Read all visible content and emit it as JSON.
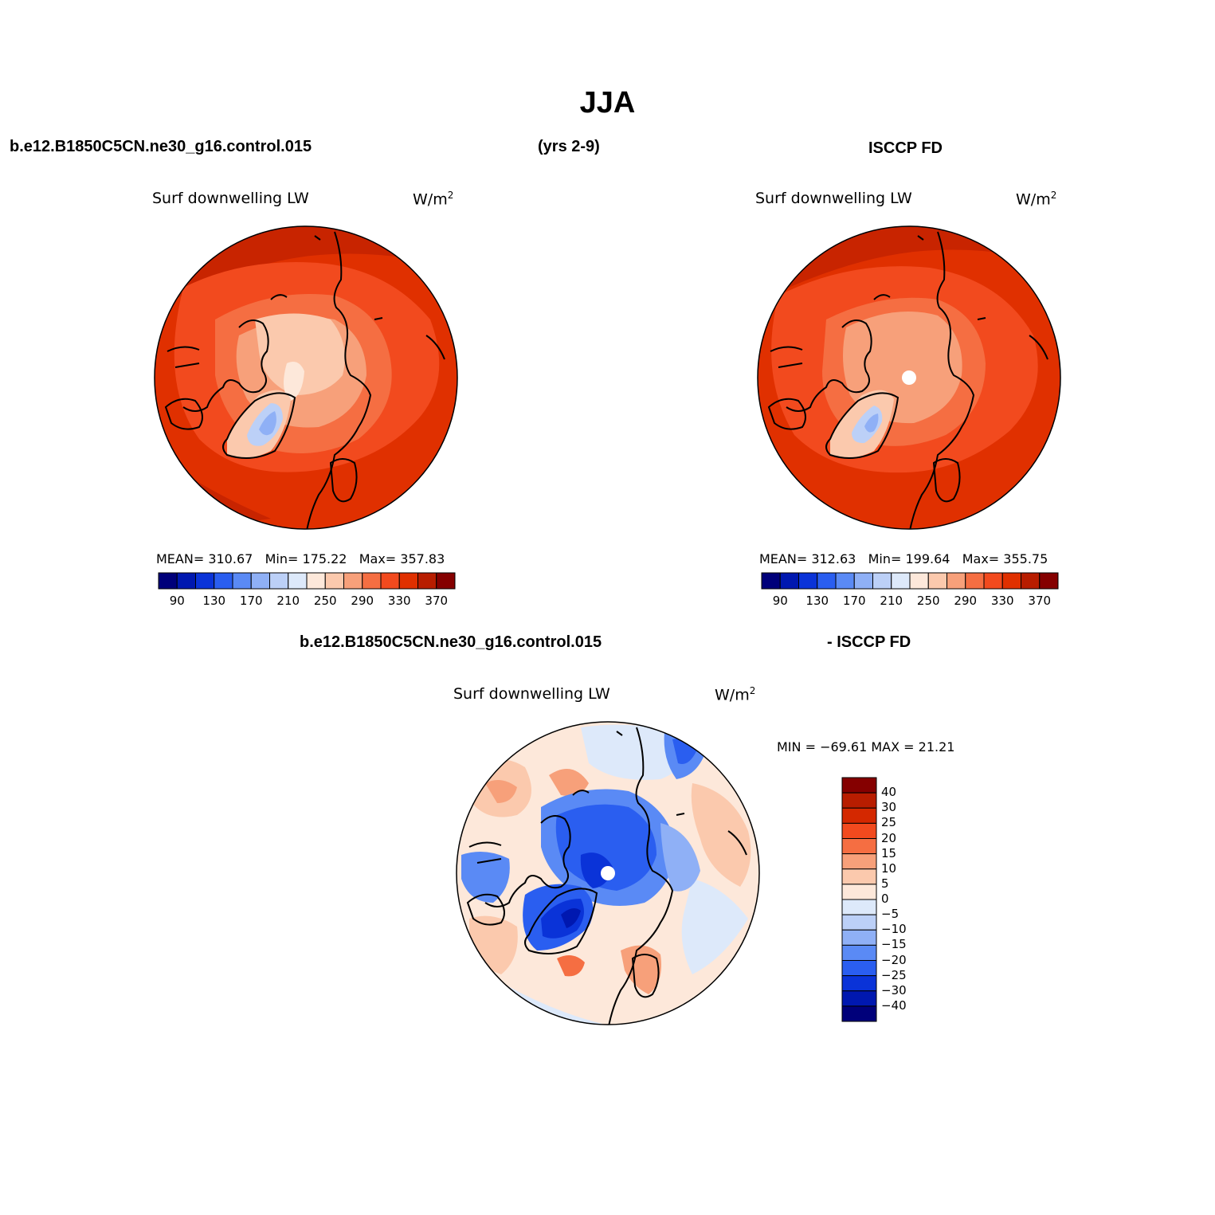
{
  "figure": {
    "title": "JJA",
    "case_name": "b.e12.B1850C5CN.ne30_g16.control.015",
    "years": "(yrs 2-9)",
    "obs_name": "ISCCP FD",
    "diff_case_name": "b.e12.B1850C5CN.ne30_g16.control.015",
    "diff_obs_name": "- ISCCP FD"
  },
  "panels": {
    "model": {
      "variable": "Surf downwelling LW",
      "units_base": "W/m",
      "units_exp": "2",
      "mean_label": "MEAN= 310.67",
      "min_label": "Min= 175.22",
      "max_label": "Max= 357.83"
    },
    "obs": {
      "variable": "Surf downwelling LW",
      "units_base": "W/m",
      "units_exp": "2",
      "mean_label": "MEAN= 312.63",
      "min_label": "Min= 199.64",
      "max_label": "Max= 355.75"
    },
    "diff": {
      "variable": "Surf downwelling LW",
      "units_base": "W/m",
      "units_exp": "2",
      "minmax_label": "MIN = −69.61 MAX =  21.21"
    }
  },
  "colorbars": {
    "abs": {
      "colors": [
        "#00007a",
        "#0018b0",
        "#0a33d8",
        "#2a5ef0",
        "#5a8af5",
        "#8fb0f6",
        "#bcd0f7",
        "#dde9fa",
        "#fde8da",
        "#fbc9ad",
        "#f7a07a",
        "#f56e42",
        "#f24a1e",
        "#e03000",
        "#b81d00",
        "#850000"
      ],
      "tick_labels": [
        "90",
        "130",
        "170",
        "210",
        "250",
        "290",
        "330",
        "370"
      ]
    },
    "diff": {
      "colors": [
        "#850000",
        "#b81d00",
        "#d42800",
        "#f24a1e",
        "#f56e42",
        "#f7a07a",
        "#fbc9ad",
        "#fde8da",
        "#dde9fa",
        "#bcd0f7",
        "#8fb0f6",
        "#5a8af5",
        "#2a5ef0",
        "#0a33d8",
        "#0018b0",
        "#00007a"
      ],
      "tick_labels": [
        "40",
        "30",
        "25",
        "20",
        "15",
        "10",
        "5",
        "0",
        "−5",
        "−10",
        "−15",
        "−20",
        "−25",
        "−30",
        "−40"
      ]
    }
  }
}
